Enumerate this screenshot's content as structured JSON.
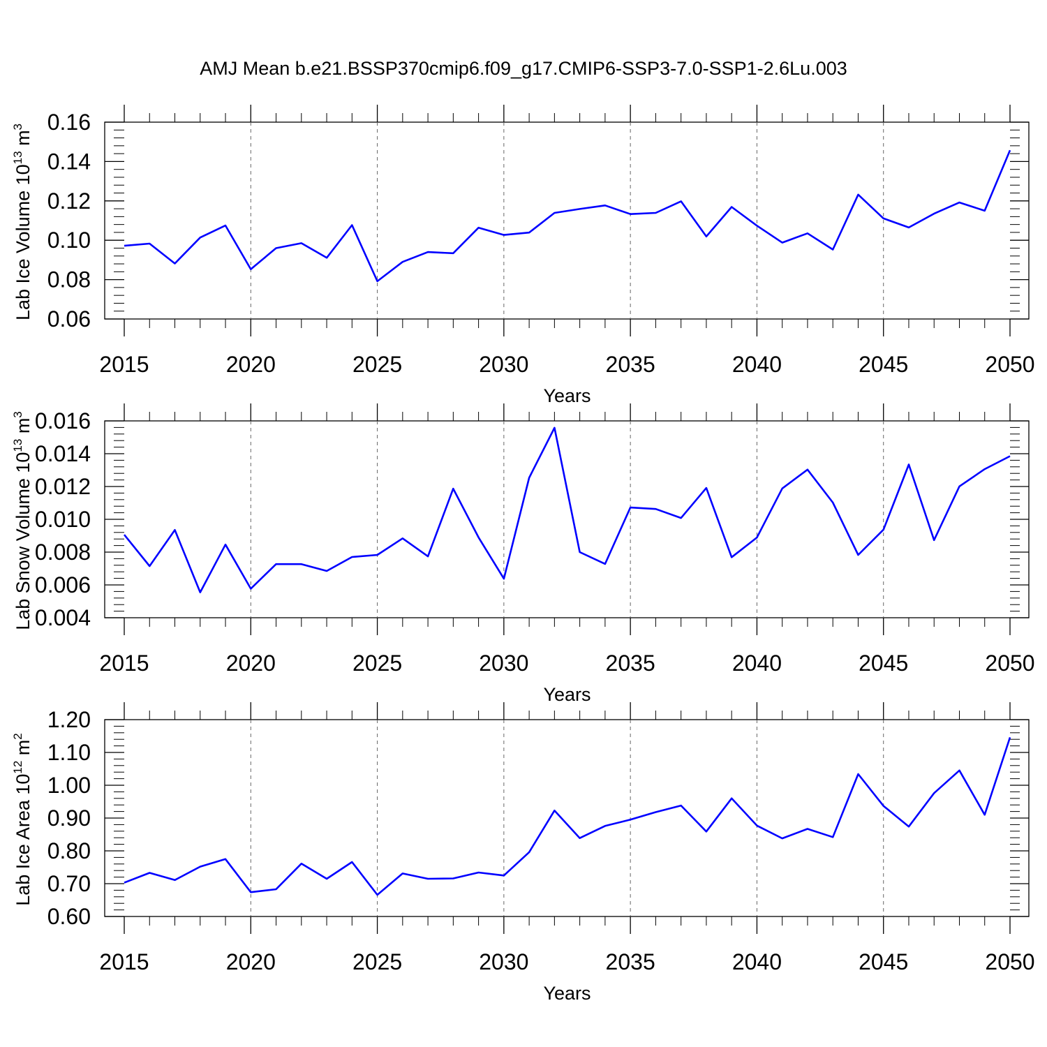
{
  "title": "AMJ Mean b.e21.BSSP370cmip6.f09_g17.CMIP6-SSP3-7.0-SSP1-2.6Lu.003",
  "line_color": "#0000ff",
  "chart_data": [
    {
      "type": "line",
      "ylabel": "Lab Ice Volume 10",
      "ylabel_exp": "13",
      "ylabel_unit": " m",
      "ylabel_unit_exp": "3",
      "xlabel": "Years",
      "xlim": [
        2015,
        2050
      ],
      "ylim": [
        0.06,
        0.16
      ],
      "yticks": [
        "0.06",
        "0.08",
        "0.10",
        "0.12",
        "0.14",
        "0.16"
      ],
      "xticks": [
        "2015",
        "2020",
        "2025",
        "2030",
        "2035",
        "2040",
        "2045",
        "2050"
      ],
      "x": [
        2015,
        2016,
        2017,
        2018,
        2019,
        2020,
        2021,
        2022,
        2023,
        2024,
        2025,
        2026,
        2027,
        2028,
        2029,
        2030,
        2031,
        2032,
        2033,
        2034,
        2035,
        2036,
        2037,
        2038,
        2039,
        2040,
        2041,
        2042,
        2043,
        2044,
        2045,
        2046,
        2047,
        2048,
        2049,
        2050
      ],
      "values": [
        0.0972,
        0.0983,
        0.0882,
        0.1014,
        0.1075,
        0.0853,
        0.096,
        0.0985,
        0.0911,
        0.1077,
        0.0792,
        0.089,
        0.094,
        0.0934,
        0.1064,
        0.1027,
        0.1039,
        0.1139,
        0.1159,
        0.1177,
        0.1133,
        0.1139,
        0.1198,
        0.1019,
        0.1169,
        0.1074,
        0.0988,
        0.1035,
        0.0953,
        0.1232,
        0.1111,
        0.1065,
        0.1135,
        0.1192,
        0.115,
        0.1457
      ]
    },
    {
      "type": "line",
      "ylabel": "Lab Snow Volume 10",
      "ylabel_exp": "13",
      "ylabel_unit": " m",
      "ylabel_unit_exp": "3",
      "xlabel": "Years",
      "xlim": [
        2015,
        2050
      ],
      "ylim": [
        0.004,
        0.016
      ],
      "yticks": [
        "0.004",
        "0.006",
        "0.008",
        "0.010",
        "0.012",
        "0.014",
        "0.016"
      ],
      "xticks": [
        "2015",
        "2020",
        "2025",
        "2030",
        "2035",
        "2040",
        "2045",
        "2050"
      ],
      "x": [
        2015,
        2016,
        2017,
        2018,
        2019,
        2020,
        2021,
        2022,
        2023,
        2024,
        2025,
        2026,
        2027,
        2028,
        2029,
        2030,
        2031,
        2032,
        2033,
        2034,
        2035,
        2036,
        2037,
        2038,
        2039,
        2040,
        2041,
        2042,
        2043,
        2044,
        2045,
        2046,
        2047,
        2048,
        2049,
        2050
      ],
      "values": [
        0.00906,
        0.00715,
        0.00935,
        0.00555,
        0.00846,
        0.00577,
        0.00727,
        0.00727,
        0.00685,
        0.0077,
        0.00783,
        0.00884,
        0.00774,
        0.01187,
        0.0089,
        0.00638,
        0.01253,
        0.01558,
        0.008,
        0.00728,
        0.01072,
        0.01063,
        0.01008,
        0.01191,
        0.00769,
        0.00889,
        0.01188,
        0.01303,
        0.01102,
        0.00783,
        0.00937,
        0.01334,
        0.00873,
        0.01201,
        0.01306,
        0.01385
      ]
    },
    {
      "type": "line",
      "ylabel": "Lab Ice Area 10",
      "ylabel_exp": "12",
      "ylabel_unit": " m",
      "ylabel_unit_exp": "2",
      "xlabel": "Years",
      "xlim": [
        2015,
        2050
      ],
      "ylim": [
        0.6,
        1.2
      ],
      "yticks": [
        "0.60",
        "0.70",
        "0.80",
        "0.90",
        "1.00",
        "1.10",
        "1.20"
      ],
      "xticks": [
        "2015",
        "2020",
        "2025",
        "2030",
        "2035",
        "2040",
        "2045",
        "2050"
      ],
      "x": [
        2015,
        2016,
        2017,
        2018,
        2019,
        2020,
        2021,
        2022,
        2023,
        2024,
        2025,
        2026,
        2027,
        2028,
        2029,
        2030,
        2031,
        2032,
        2033,
        2034,
        2035,
        2036,
        2037,
        2038,
        2039,
        2040,
        2041,
        2042,
        2043,
        2044,
        2045,
        2046,
        2047,
        2048,
        2049,
        2050
      ],
      "values": [
        0.703,
        0.733,
        0.711,
        0.752,
        0.775,
        0.674,
        0.683,
        0.761,
        0.715,
        0.766,
        0.666,
        0.731,
        0.715,
        0.716,
        0.734,
        0.725,
        0.796,
        0.923,
        0.839,
        0.876,
        0.895,
        0.918,
        0.938,
        0.859,
        0.96,
        0.877,
        0.838,
        0.867,
        0.842,
        1.034,
        0.937,
        0.874,
        0.976,
        1.045,
        0.91,
        1.146
      ]
    }
  ]
}
